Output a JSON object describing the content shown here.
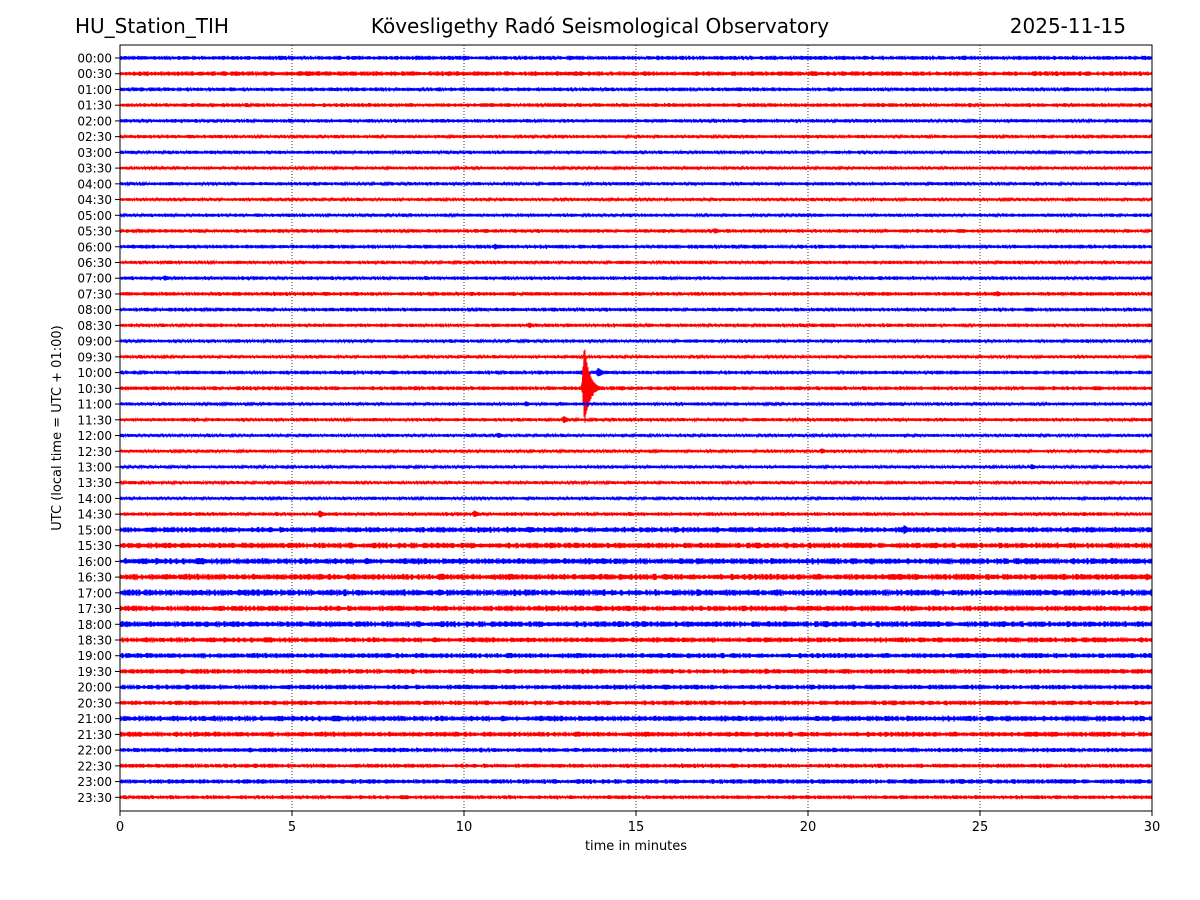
{
  "header": {
    "station": "HU_Station_TIH",
    "observatory": "Kövesligethy Radó Seismological Observatory",
    "date": "2025-11-15"
  },
  "chart_data": {
    "type": "line",
    "title": "Kövesligethy Radó Seismological Observatory",
    "xlabel": "time in minutes",
    "ylabel": "UTC (local time = UTC + 01:00)",
    "xlim": [
      0,
      30
    ],
    "xticks": [
      0,
      5,
      10,
      15,
      20,
      25,
      30
    ],
    "grid": "vertical dotted",
    "colors": {
      "even_hour": "#0000ff",
      "half_hour": "#ff0000",
      "grid": "#000000"
    },
    "traces": [
      "00:00",
      "00:30",
      "01:00",
      "01:30",
      "02:00",
      "02:30",
      "03:00",
      "03:30",
      "04:00",
      "04:30",
      "05:00",
      "05:30",
      "06:00",
      "06:30",
      "07:00",
      "07:30",
      "08:00",
      "08:30",
      "09:00",
      "09:30",
      "10:00",
      "10:30",
      "11:00",
      "11:30",
      "12:00",
      "12:30",
      "13:00",
      "13:30",
      "14:00",
      "14:30",
      "15:00",
      "15:30",
      "16:00",
      "16:30",
      "17:00",
      "17:30",
      "18:00",
      "18:30",
      "19:00",
      "19:30",
      "20:00",
      "20:30",
      "21:00",
      "21:30",
      "22:00",
      "22:30",
      "23:00",
      "23:30"
    ],
    "noise_level": [
      1.6,
      1.8,
      1.5,
      1.5,
      1.4,
      1.3,
      1.3,
      1.2,
      1.3,
      1.2,
      1.3,
      1.4,
      1.5,
      1.3,
      1.4,
      1.5,
      1.4,
      1.4,
      1.3,
      1.2,
      1.5,
      1.5,
      1.3,
      1.3,
      1.2,
      1.2,
      1.2,
      1.2,
      1.2,
      1.4,
      2.2,
      2.2,
      2.4,
      2.4,
      2.5,
      2.2,
      2.3,
      2.0,
      2.0,
      1.9,
      1.9,
      1.8,
      2.2,
      2.0,
      1.7,
      1.6,
      1.8,
      1.5
    ],
    "events": [
      {
        "trace": "05:30",
        "minute": 17.3,
        "amplitude": 3
      },
      {
        "trace": "06:00",
        "minute": 10.9,
        "amplitude": 3
      },
      {
        "trace": "07:00",
        "minute": 1.3,
        "amplitude": 3
      },
      {
        "trace": "07:30",
        "minute": 25.5,
        "amplitude": 3
      },
      {
        "trace": "08:30",
        "minute": 11.9,
        "amplitude": 3
      },
      {
        "trace": "10:00",
        "minute": 13.9,
        "amplitude": 5
      },
      {
        "trace": "10:30",
        "minute": 13.5,
        "amplitude": 44
      },
      {
        "trace": "11:00",
        "minute": 11.8,
        "amplitude": 3
      },
      {
        "trace": "11:30",
        "minute": 12.9,
        "amplitude": 4
      },
      {
        "trace": "12:00",
        "minute": 11.0,
        "amplitude": 3
      },
      {
        "trace": "12:30",
        "minute": 20.4,
        "amplitude": 3
      },
      {
        "trace": "13:00",
        "minute": 26.5,
        "amplitude": 3
      },
      {
        "trace": "14:30",
        "minute": 5.8,
        "amplitude": 4
      },
      {
        "trace": "14:30",
        "minute": 10.3,
        "amplitude": 4
      },
      {
        "trace": "15:00",
        "minute": 22.8,
        "amplitude": 5
      },
      {
        "trace": "17:00",
        "minute": 6.0,
        "amplitude": 3
      },
      {
        "trace": "21:00",
        "minute": 2.4,
        "amplitude": 3
      },
      {
        "trace": "21:30",
        "minute": 27.2,
        "amplitude": 3
      },
      {
        "trace": "23:00",
        "minute": 23.0,
        "amplitude": 3
      }
    ]
  }
}
